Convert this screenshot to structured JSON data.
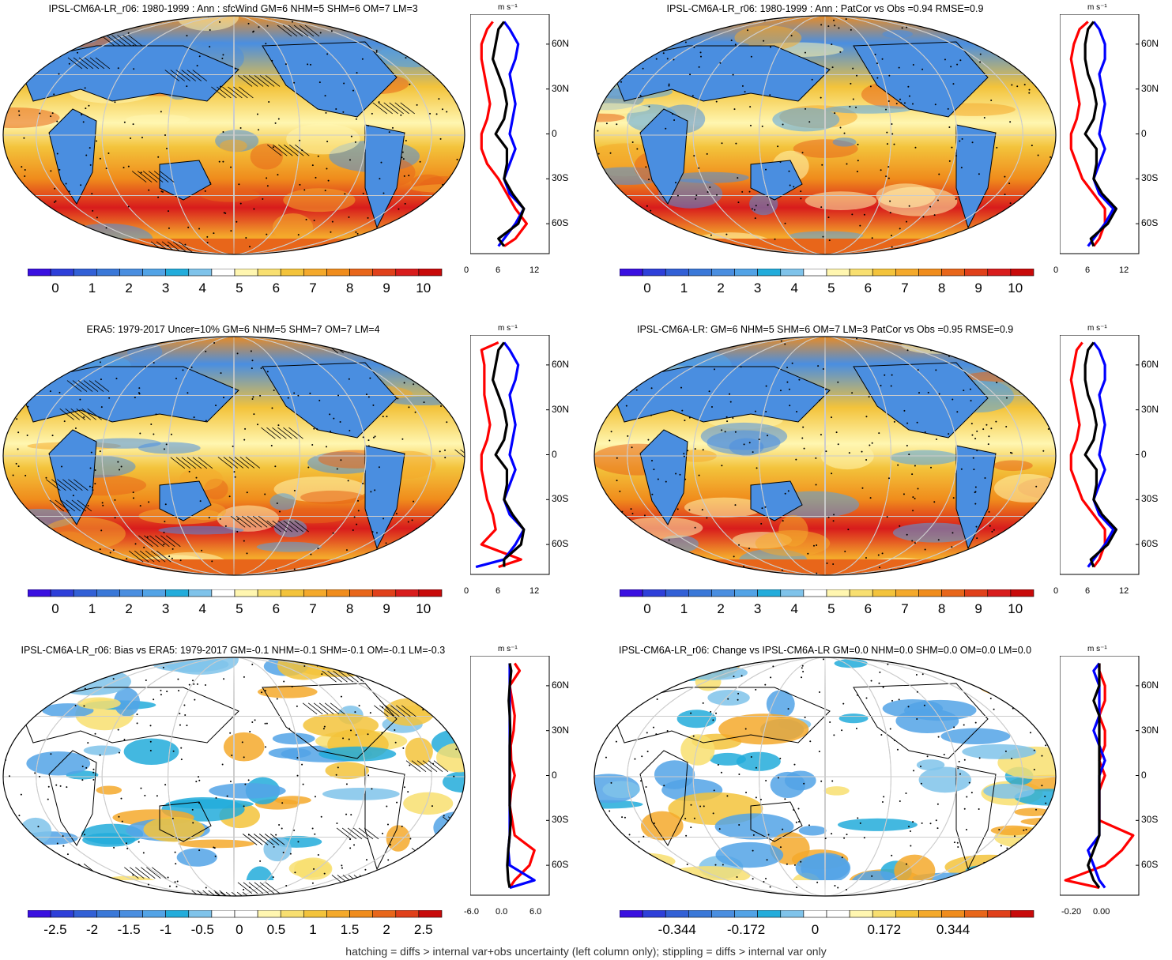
{
  "colors": {
    "full_field_scale": [
      "#3a10e0",
      "#2e3fd9",
      "#3260d6",
      "#3a78d8",
      "#4a8ee0",
      "#52a3e6",
      "#22acdb",
      "#7fc3ea",
      "#ffffff",
      "#fff6b0",
      "#f8df70",
      "#f3c33b",
      "#f4a92b",
      "#f08c1c",
      "#e8661a",
      "#e0401a",
      "#d81c1c",
      "#c80a0a"
    ],
    "diff_scale": [
      "#3a10e0",
      "#2e3fd9",
      "#3260d6",
      "#3a78d8",
      "#4a8ee0",
      "#52a3e6",
      "#22acdb",
      "#7fc3ea",
      "#ffffff",
      "#ffffff",
      "#fff6b0",
      "#f8df70",
      "#f3c33b",
      "#f4a92b",
      "#f08c1c",
      "#e8661a",
      "#e0401a",
      "#c80a0a"
    ],
    "profile_obs": "#ff0000",
    "profile_model": "#000000",
    "profile_other": "#0000ff"
  },
  "footer": "hatching = diffs > internal var+obs uncertainty (left column only); stippling = diffs > internal var only",
  "panels": [
    {
      "title": "IPSL-CM6A-LR_r06: 1980-1999 : Ann : sfcWind GM=6 NHM=5 SHM=6 OM=7 LM=3",
      "cbar_labels": [
        "0",
        "1",
        "2",
        "3",
        "4",
        "5",
        "6",
        "7",
        "8",
        "9",
        "10"
      ],
      "profile_units": "m s⁻¹",
      "profile_x_ticks": [
        "0",
        "6",
        "12"
      ],
      "profile_lat_ticks": [
        "60N",
        "30N",
        "0",
        "30S",
        "60S"
      ],
      "chart_data": {
        "type": "heatmap",
        "variable": "sfcWind",
        "colorbar_range": [
          0,
          10
        ],
        "zonal_profile": {
          "lat": [
            -75,
            -70,
            -60,
            -50,
            -40,
            -30,
            -20,
            -10,
            0,
            10,
            20,
            30,
            40,
            50,
            60,
            70,
            75
          ],
          "black": [
            6,
            5,
            8.5,
            9.5,
            7.5,
            6,
            6.5,
            6.5,
            4.5,
            6,
            6.5,
            6,
            5,
            4,
            4.5,
            5,
            6
          ],
          "red": [
            6,
            8,
            10,
            8,
            6.5,
            5,
            3,
            2,
            2,
            3,
            3.5,
            3,
            2.5,
            2,
            2,
            3,
            4
          ],
          "blue": [
            5,
            6,
            8,
            9.5,
            7,
            6,
            7,
            8,
            7,
            7.5,
            8,
            7.5,
            7,
            8,
            8.5,
            7,
            6
          ]
        }
      }
    },
    {
      "title": "IPSL-CM6A-LR_r06: 1980-1999 : Ann : PatCor vs Obs =0.94 RMSE=0.9",
      "cbar_labels": [
        "0",
        "1",
        "2",
        "3",
        "4",
        "5",
        "6",
        "7",
        "8",
        "9",
        "10"
      ],
      "profile_units": "m s⁻¹",
      "profile_x_ticks": [
        "0",
        "6",
        "12"
      ],
      "profile_lat_ticks": [
        "60N",
        "30N",
        "0",
        "30S",
        "60S"
      ],
      "chart_data": {
        "type": "heatmap",
        "colorbar_range": [
          0,
          10
        ],
        "zonal_profile": {
          "lat": [
            -75,
            -70,
            -60,
            -50,
            -40,
            -30,
            -20,
            -10,
            0,
            10,
            20,
            30,
            40,
            50,
            60,
            70,
            75
          ],
          "black": [
            6,
            5.5,
            8.5,
            10,
            7.5,
            6,
            6.5,
            6.5,
            4.5,
            6,
            6.5,
            6,
            5,
            4.5,
            4.5,
            5,
            6
          ],
          "red": [
            6,
            7,
            8,
            8,
            6,
            4,
            3,
            2,
            2,
            3,
            3.5,
            3,
            2.5,
            2,
            2.5,
            3.5,
            5
          ],
          "blue": [
            5,
            6,
            8,
            9.5,
            7,
            6,
            7,
            8,
            7,
            7.5,
            8,
            7.5,
            7,
            8,
            8,
            7,
            6
          ]
        }
      }
    },
    {
      "title": "ERA5: 1979-2017 Uncer=10% GM=6 NHM=5 SHM=7 OM=7 LM=4",
      "cbar_labels": [
        "0",
        "1",
        "2",
        "3",
        "4",
        "5",
        "6",
        "7",
        "8",
        "9",
        "10"
      ],
      "profile_units": "m s⁻¹",
      "profile_x_ticks": [
        "0",
        "6",
        "12"
      ],
      "profile_lat_ticks": [
        "60N",
        "30N",
        "0",
        "30S",
        "60S"
      ],
      "chart_data": {
        "type": "heatmap",
        "colorbar_range": [
          0,
          10
        ],
        "zonal_profile": {
          "lat": [
            -75,
            -70,
            -60,
            -50,
            -40,
            -30,
            -20,
            -10,
            0,
            10,
            20,
            30,
            40,
            50,
            60,
            70,
            75
          ],
          "black": [
            6,
            6,
            9,
            9.5,
            7.5,
            6,
            6.5,
            6.5,
            4.5,
            6,
            6.5,
            6,
            5,
            4,
            4.5,
            5,
            6
          ],
          "red": [
            5,
            9,
            2,
            4.5,
            4,
            3,
            2.5,
            2,
            2,
            3,
            3.5,
            3,
            2.5,
            2.5,
            2.5,
            2,
            5
          ],
          "blue": [
            1,
            6,
            8,
            9.5,
            7,
            6,
            7,
            8,
            7,
            7.5,
            8,
            7.5,
            7,
            8,
            8.5,
            7,
            6
          ]
        }
      }
    },
    {
      "title": "IPSL-CM6A-LR: GM=6 NHM=5 SHM=6 OM=7 LM=3 PatCor vs Obs =0.95 RMSE=0.9",
      "cbar_labels": [
        "0",
        "1",
        "2",
        "3",
        "4",
        "5",
        "6",
        "7",
        "8",
        "9",
        "10"
      ],
      "profile_units": "m s⁻¹",
      "profile_x_ticks": [
        "0",
        "6",
        "12"
      ],
      "profile_lat_ticks": [
        "60N",
        "30N",
        "0",
        "30S",
        "60S"
      ],
      "chart_data": {
        "type": "heatmap",
        "colorbar_range": [
          0,
          10
        ],
        "zonal_profile": {
          "lat": [
            -75,
            -70,
            -60,
            -50,
            -40,
            -30,
            -20,
            -10,
            0,
            10,
            20,
            30,
            40,
            50,
            60,
            70,
            75
          ],
          "black": [
            6,
            5.5,
            8.5,
            10,
            7.5,
            6,
            6.5,
            6.5,
            4.5,
            6,
            6.5,
            6,
            5,
            4.5,
            4.5,
            5,
            6
          ],
          "red": [
            6,
            7,
            8,
            8,
            6,
            4,
            3,
            2,
            2,
            3,
            3.5,
            3,
            2.5,
            2,
            2.5,
            3,
            4
          ],
          "blue": [
            5,
            6,
            8,
            9.5,
            7,
            6,
            7,
            8,
            7,
            7.5,
            8,
            7.5,
            7,
            8,
            8,
            7,
            6
          ]
        }
      }
    },
    {
      "title": "IPSL-CM6A-LR_r06: Bias vs ERA5: 1979-2017 GM=-0.1 NHM=-0.1 SHM=-0.1 OM=-0.1 LM=-0.3",
      "cbar_labels": [
        "-2.5",
        "-2",
        "-1.5",
        "-1",
        "-0.5",
        "0",
        "0.5",
        "1",
        "1.5",
        "2",
        "2.5"
      ],
      "profile_units": "m s⁻¹",
      "profile_x_ticks": [
        "-6.0",
        "0.0",
        "6.0"
      ],
      "profile_lat_ticks": [
        "60N",
        "30N",
        "0",
        "30S",
        "60S"
      ],
      "chart_data": {
        "type": "heatmap",
        "colorbar_range": [
          -2.5,
          2.5
        ],
        "zonal_profile": {
          "lat": [
            -75,
            -70,
            -60,
            -50,
            -40,
            -30,
            -20,
            -10,
            0,
            10,
            20,
            30,
            40,
            50,
            60,
            70,
            75
          ],
          "black": [
            0,
            -0.3,
            -0.5,
            -0.3,
            0,
            0.2,
            0,
            0,
            0,
            0,
            0,
            0.1,
            0,
            -0.2,
            0,
            0.3,
            0
          ],
          "red": [
            0,
            1,
            4,
            5,
            1,
            0.5,
            0,
            0.3,
            1,
            0.3,
            0.2,
            0.8,
            1,
            0.5,
            0,
            2,
            1
          ],
          "blue": [
            0,
            5,
            0,
            -0.3,
            0,
            0,
            0,
            0,
            0,
            0,
            0,
            0,
            0,
            0,
            0,
            0,
            0
          ]
        }
      }
    },
    {
      "title": "IPSL-CM6A-LR_r06: Change vs IPSL-CM6A-LR GM=0.0 NHM=0.0 SHM=0.0 OM=0.0 LM=0.0",
      "cbar_labels": [
        "-0.344",
        "-0.172",
        "0",
        "0.172",
        "0.344"
      ],
      "profile_units": "m s⁻¹",
      "profile_x_ticks": [
        "-0.20",
        "0.00"
      ],
      "profile_lat_ticks": [
        "60N",
        "30N",
        "0",
        "30S",
        "60S"
      ],
      "chart_data": {
        "type": "heatmap",
        "colorbar_range": [
          -0.43,
          0.43
        ],
        "zonal_profile": {
          "lat": [
            -75,
            -70,
            -60,
            -50,
            -40,
            -30,
            -20,
            -10,
            0,
            10,
            20,
            30,
            40,
            50,
            60,
            70,
            75
          ],
          "black": [
            0,
            -0.05,
            -0.1,
            -0.05,
            0,
            0,
            0,
            0,
            0,
            0,
            0,
            0,
            0,
            -0.05,
            0,
            0,
            0
          ],
          "red": [
            0,
            -0.3,
            0.05,
            0.2,
            0.3,
            0,
            0,
            0,
            0.05,
            0,
            0.05,
            0.05,
            0,
            0.05,
            0.05,
            0,
            0
          ],
          "blue": [
            0.05,
            0,
            -0.05,
            -0.1,
            0,
            0,
            0,
            0,
            0,
            0.05,
            0,
            -0.05,
            0,
            0,
            0,
            -0.05,
            0
          ]
        }
      }
    }
  ]
}
